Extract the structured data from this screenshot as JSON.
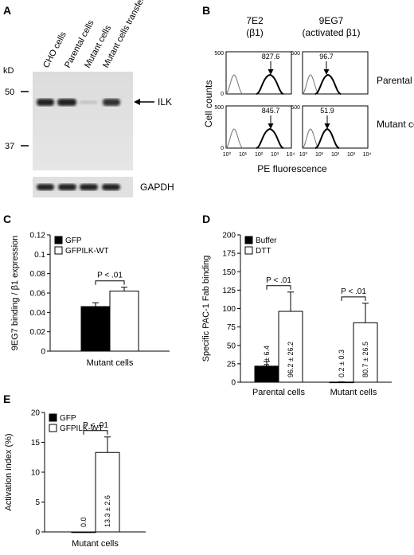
{
  "panels": {
    "A": {
      "label": "A",
      "lanes": [
        "CHO cells",
        "Parental cells",
        "Mutant cells",
        "Mutant cells transfected with ILK cDNA"
      ],
      "kd_label": "kD",
      "markers": [
        "50",
        "37"
      ],
      "band_label": "ILK",
      "loading_label": "GAPDH"
    },
    "B": {
      "label": "B",
      "col1_title": "7E2",
      "col1_sub": "(β1)",
      "col2_title": "9EG7",
      "col2_sub": "(activated β1)",
      "row1_label": "Parental cells",
      "row2_label": "Mutant cells",
      "ylabel": "Cell counts",
      "xlabel": "PE fluorescence",
      "peaks": [
        "827.6",
        "96.7",
        "845.7",
        "51.9"
      ],
      "ytick_top": "500",
      "ytick_zero": "0",
      "xticks": [
        "10⁰",
        "10¹",
        "10²",
        "10³",
        "10⁴"
      ]
    },
    "C": {
      "label": "C",
      "sig": "P < .01"
    },
    "D": {
      "label": "D",
      "sig1": "P < .01",
      "sig2": "P < .01"
    },
    "E": {
      "label": "E",
      "sig": "P < .01"
    }
  },
  "chart_data": [
    {
      "panel": "C",
      "type": "bar",
      "categories": [
        "Mutant cells"
      ],
      "series": [
        {
          "name": "GFP",
          "values": [
            0.046
          ],
          "error": [
            0.004
          ],
          "color": "#000000"
        },
        {
          "name": "GFPILK-WT",
          "values": [
            0.062
          ],
          "error": [
            0.004
          ],
          "color": "#ffffff"
        }
      ],
      "xlabel": "Mutant cells",
      "ylabel": "9EG7 binding / β1 expression",
      "ylim": [
        0,
        0.12
      ],
      "yticks": [
        "0",
        "0.02",
        "0.04",
        "0.06",
        "0.08",
        "0.1",
        "0.12"
      ],
      "legend": "top-left"
    },
    {
      "panel": "D",
      "type": "bar",
      "categories": [
        "Parental cells",
        "Mutant cells"
      ],
      "series": [
        {
          "name": "Buffer",
          "values": [
            21.8,
            0.2
          ],
          "error": [
            6.4,
            0.3
          ],
          "color": "#000000",
          "labels": [
            "21.8 ± 6.4",
            "0.2 ± 0.3"
          ]
        },
        {
          "name": "DTT",
          "values": [
            96.2,
            80.7
          ],
          "error": [
            26.2,
            26.5
          ],
          "color": "#ffffff",
          "labels": [
            "96.2 ± 26.2",
            "80.7 ± 26.5"
          ]
        }
      ],
      "ylabel": "Specific PAC-1 Fab binding",
      "ylim": [
        0,
        200
      ],
      "yticks": [
        "0",
        "25",
        "50",
        "75",
        "100",
        "125",
        "150",
        "175",
        "200"
      ],
      "legend": "top-left"
    },
    {
      "panel": "E",
      "type": "bar",
      "categories": [
        "Mutant cells"
      ],
      "series": [
        {
          "name": "GFP",
          "values": [
            0.0
          ],
          "error": [
            0
          ],
          "color": "#000000",
          "labels": [
            "0.0"
          ]
        },
        {
          "name": "GFPILK-WT",
          "values": [
            13.3
          ],
          "error": [
            2.6
          ],
          "color": "#ffffff",
          "labels": [
            "13.3 ± 2.6"
          ]
        }
      ],
      "xlabel": "Mutant cells",
      "ylabel": "Activation index (%)",
      "ylim": [
        0,
        20
      ],
      "yticks": [
        "0",
        "5",
        "10",
        "15",
        "20"
      ],
      "legend": "top-left"
    }
  ]
}
